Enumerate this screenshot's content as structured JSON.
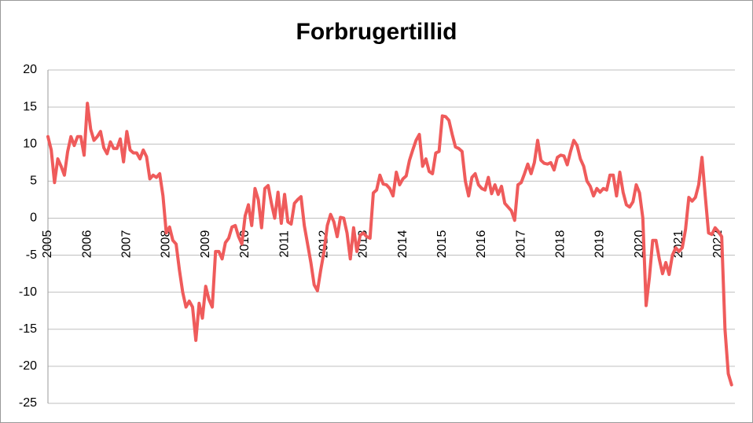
{
  "chart_data": {
    "type": "line",
    "title": "Forbrugertillid",
    "categories": [
      "2005",
      null,
      null,
      null,
      null,
      null,
      null,
      null,
      null,
      null,
      null,
      null,
      "2006",
      null,
      null,
      null,
      null,
      null,
      null,
      null,
      null,
      null,
      null,
      null,
      "2007",
      null,
      null,
      null,
      null,
      null,
      null,
      null,
      null,
      null,
      null,
      null,
      "2008",
      null,
      null,
      null,
      null,
      null,
      null,
      null,
      null,
      null,
      null,
      null,
      "2009",
      null,
      null,
      null,
      null,
      null,
      null,
      null,
      null,
      null,
      null,
      null,
      "2010",
      null,
      null,
      null,
      null,
      null,
      null,
      null,
      null,
      null,
      null,
      null,
      "2011",
      null,
      null,
      null,
      null,
      null,
      null,
      null,
      null,
      null,
      null,
      null,
      "2012",
      null,
      null,
      null,
      null,
      null,
      null,
      null,
      null,
      null,
      null,
      null,
      "2013",
      null,
      null,
      null,
      null,
      null,
      null,
      null,
      null,
      null,
      null,
      null,
      "2014",
      null,
      null,
      null,
      null,
      null,
      null,
      null,
      null,
      null,
      null,
      null,
      "2015",
      null,
      null,
      null,
      null,
      null,
      null,
      null,
      null,
      null,
      null,
      null,
      "2016",
      null,
      null,
      null,
      null,
      null,
      null,
      null,
      null,
      null,
      null,
      null,
      "2017",
      null,
      null,
      null,
      null,
      null,
      null,
      null,
      null,
      null,
      null,
      null,
      "2018",
      null,
      null,
      null,
      null,
      null,
      null,
      null,
      null,
      null,
      null,
      null,
      "2019",
      null,
      null,
      null,
      null,
      null,
      null,
      null,
      null,
      null,
      null,
      null,
      "2020",
      null,
      null,
      null,
      null,
      null,
      null,
      null,
      null,
      null,
      null,
      null,
      "2021",
      null,
      null,
      null,
      null,
      null,
      null,
      null,
      null,
      null,
      null,
      null,
      "2022",
      null,
      null,
      null,
      null
    ],
    "values": [
      11,
      9.2,
      4.8,
      8,
      7,
      5.8,
      9,
      11,
      9.8,
      11,
      11,
      8.5,
      15.5,
      12,
      10.5,
      11,
      11.7,
      9.5,
      8.7,
      10.3,
      9.4,
      9.4,
      10.7,
      7.6,
      11.7,
      9.2,
      8.8,
      8.8,
      8,
      9.2,
      8.3,
      5.3,
      5.8,
      5.5,
      6,
      3,
      -2,
      -1.2,
      -3,
      -3.5,
      -7,
      -10,
      -12,
      -11.2,
      -12,
      -16.5,
      -11.5,
      -13.5,
      -9.2,
      -11,
      -12,
      -4.5,
      -4.5,
      -5.5,
      -3.3,
      -2.7,
      -1.2,
      -1,
      -2.5,
      -3.5,
      0.3,
      1.8,
      -1,
      4,
      2.5,
      -1.3,
      4,
      4.4,
      2,
      0,
      3.5,
      -0.7,
      3.2,
      -0.5,
      -0.8,
      2,
      2.5,
      2.9,
      -1,
      -3.5,
      -6,
      -9,
      -9.8,
      -7,
      -4.5,
      -1,
      0.5,
      -0.5,
      -2.5,
      0.1,
      0,
      -2,
      -5.5,
      -1.3,
      -4.5,
      -2.3,
      -2,
      -2.5,
      -2.7,
      3.4,
      3.8,
      5.8,
      4.6,
      4.5,
      4,
      3,
      6.2,
      4.5,
      5.3,
      5.7,
      7.8,
      9.2,
      10.5,
      11.3,
      7,
      8,
      6.3,
      6,
      8.8,
      9,
      13.8,
      13.7,
      13.2,
      11.3,
      9.6,
      9.4,
      9,
      5,
      3,
      5.5,
      6,
      4.5,
      4,
      3.8,
      5.5,
      3.3,
      4.5,
      3.2,
      4.3,
      2,
      1.5,
      1,
      -0.3,
      4.5,
      4.8,
      6,
      7.3,
      6,
      7.5,
      10.5,
      7.8,
      7.4,
      7.3,
      7.5,
      6.5,
      8.2,
      8.5,
      8.4,
      7.2,
      9,
      10.5,
      9.8,
      8,
      7,
      5,
      4.3,
      3,
      4,
      3.5,
      4,
      3.8,
      5.8,
      5.8,
      3,
      6.2,
      3.5,
      1.8,
      1.5,
      2.2,
      4.5,
      3.4,
      0,
      -11.8,
      -8,
      -3,
      -3,
      -5.5,
      -7.5,
      -6,
      -7.6,
      -5,
      -4,
      -4.5,
      -4,
      -1.5,
      2.8,
      2.3,
      2.8,
      4.5,
      8.2,
      3,
      -2,
      -2.2,
      -1.3,
      -1.8,
      -2.5,
      -15,
      -21,
      -22.5
    ],
    "color": "#ef5b5b",
    "ylim": [
      -25,
      20
    ],
    "yticks": [
      -25,
      -20,
      -15,
      -10,
      -5,
      0,
      5,
      10,
      15,
      20
    ],
    "grid": true
  }
}
